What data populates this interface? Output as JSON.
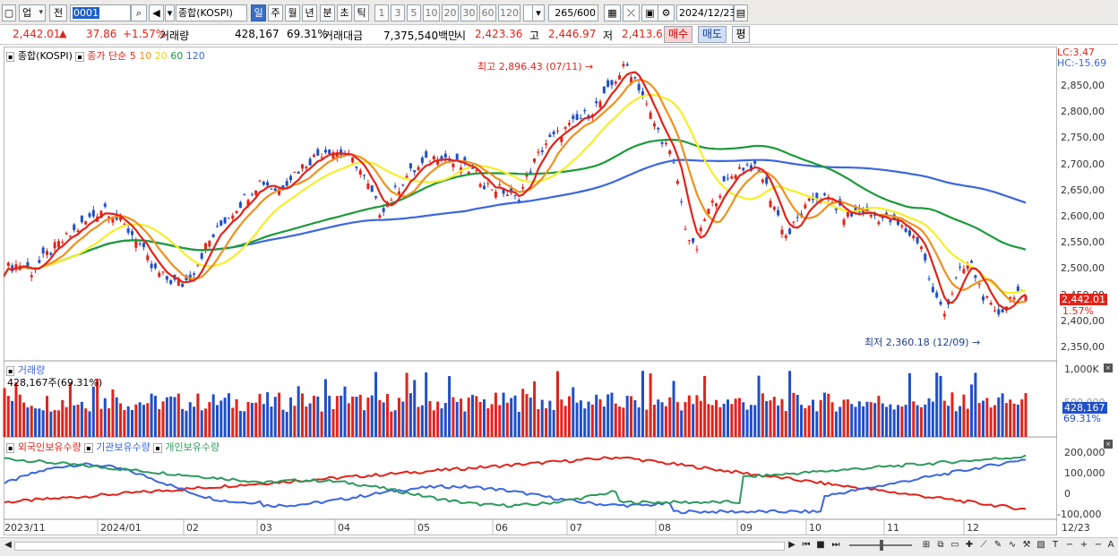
{
  "toolbar": {
    "market": "업",
    "prev": "전",
    "code": "0001",
    "name": "종합(KOSPI)",
    "periods": [
      "일",
      "주",
      "월",
      "년",
      "분",
      "초",
      "틱"
    ],
    "numbers": [
      "1",
      "3",
      "5",
      "10",
      "20",
      "30",
      "60",
      "120"
    ],
    "count": "265",
    "total": "/600",
    "date": "2024/12/23"
  },
  "quote": {
    "price": "2,442.01",
    "arrow": "▲",
    "change": "37.86",
    "change_pct": "+1.57%",
    "volume_label": "거래량",
    "volume": "428,167",
    "volume_pct": "69.31%",
    "amount_label": "거래대금",
    "amount": "7,375,540백만",
    "open_label": "시",
    "open": "2,423.36",
    "high_label": "고",
    "high": "2,446.97",
    "low_label": "저",
    "low": "2,413.6",
    "buy": "매수",
    "sell": "매도",
    "eval": "평"
  },
  "price_panel": {
    "title": "종합(KOSPI)",
    "ma_label": "종가 단순",
    "ma_periods": [
      "5",
      "10",
      "20",
      "60",
      "120"
    ],
    "lc": "LC:3.47",
    "hc": "HC:-15.69",
    "high_note": "최고 2,896.43 (07/11)",
    "low_note": "최저 2,360.18 (12/09)",
    "last_price": "2,442.01",
    "last_pct": "1.57%",
    "y_ticks": [
      "2,850,00",
      "2,800,00",
      "2,750,00",
      "2,700,00",
      "2,650,00",
      "2,600,00",
      "2,550,00",
      "2,500,00",
      "2,450,00",
      "2,400,00",
      "2,350,00"
    ]
  },
  "volume_panel": {
    "title": "거래량",
    "value": "428,167주(69.31%)",
    "y_ticks": [
      "1,000K",
      "500,000"
    ],
    "last": "428,167",
    "last_pct": "69.31%"
  },
  "holdings_panel": {
    "series": [
      "외국인보유수량",
      "기관보유수량",
      "개인보유수량"
    ],
    "y_ticks": [
      "200,000",
      "100,000",
      "0",
      "-100,000"
    ]
  },
  "x_axis": [
    "2023/11",
    "2024/01",
    "02",
    "03",
    "04",
    "05",
    "06",
    "07",
    "08",
    "09",
    "10",
    "11",
    "12",
    "12/23"
  ],
  "colors": {
    "up": "#e2231a",
    "down": "#1f4fc9",
    "ma5": "#e2231a",
    "ma10": "#f0901e",
    "ma20": "#f5ef2a",
    "ma60": "#1c9a3a",
    "ma120": "#3a66e0",
    "foreign": "#e2231a",
    "institution": "#3a66e0",
    "individual": "#2e9a5e"
  }
}
